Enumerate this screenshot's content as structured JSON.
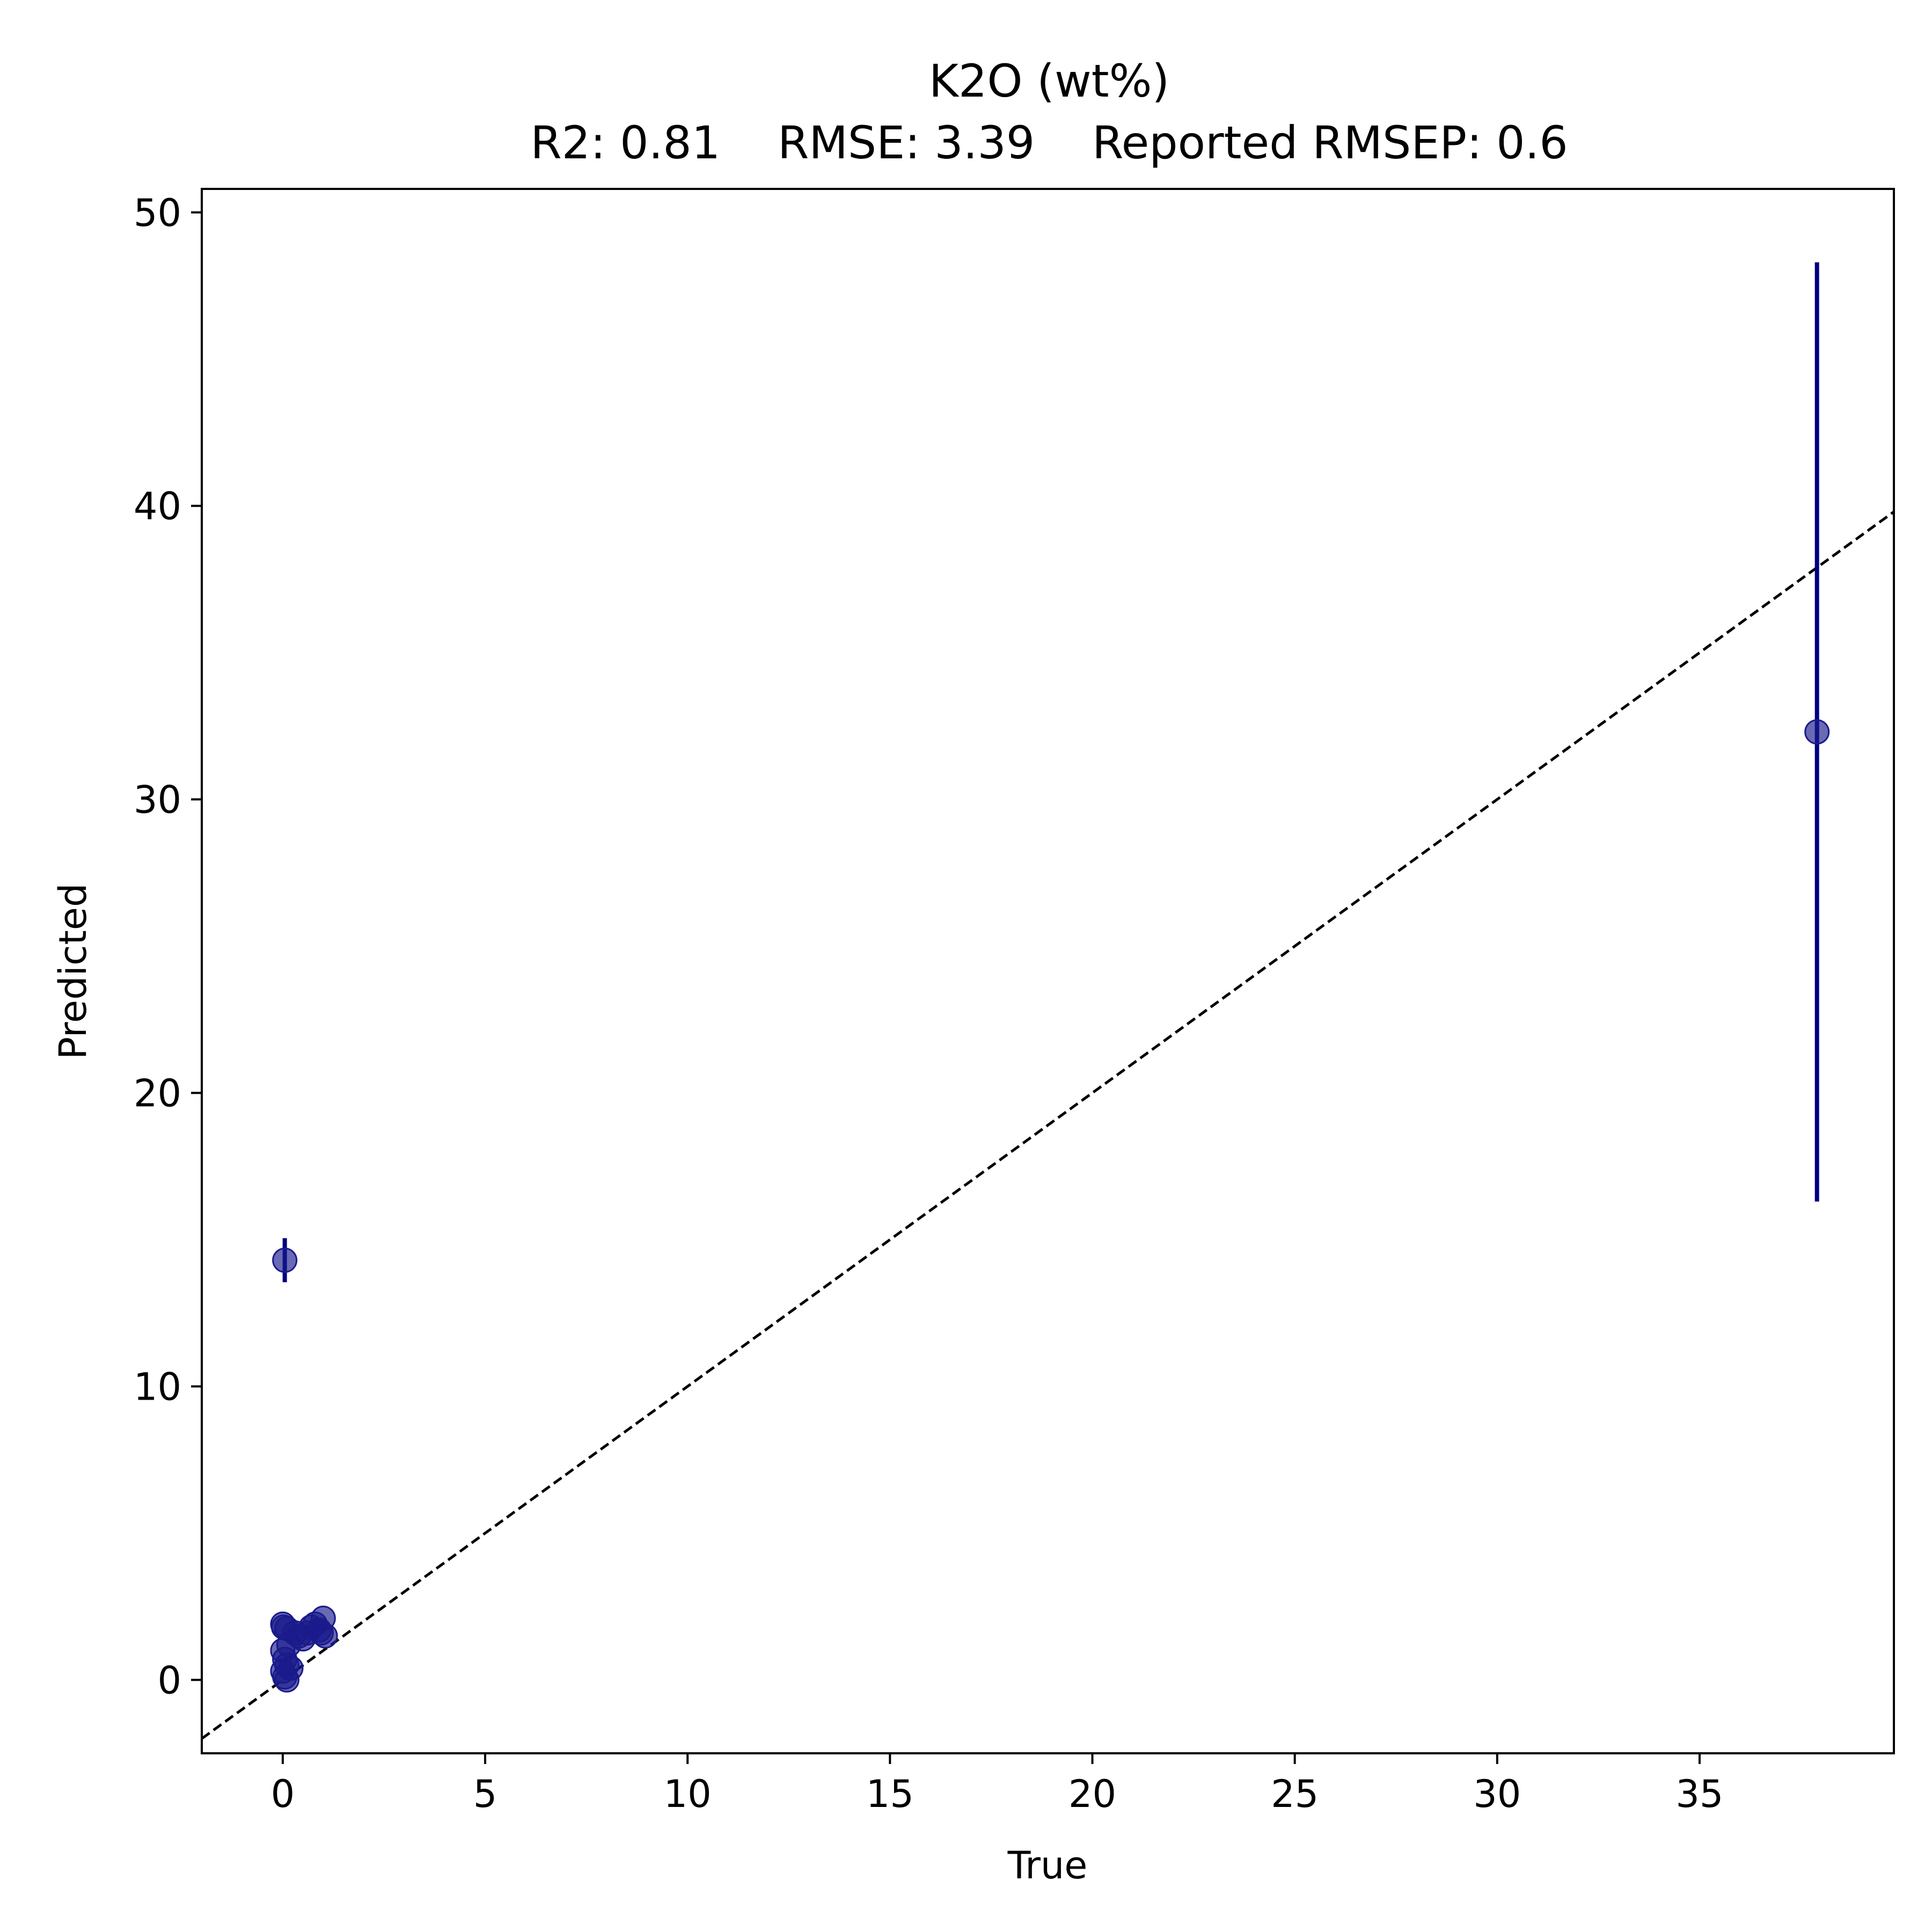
{
  "chart_data": {
    "type": "scatter",
    "title": "K2O (wt%)",
    "subtitle": "R2: 0.81    RMSE: 3.39    Reported RMSEP: 0.6",
    "xlabel": "True",
    "ylabel": "Predicted",
    "xlim": [
      -2,
      39.8
    ],
    "ylim": [
      -2.5,
      50.8
    ],
    "xticks": [
      0,
      5,
      10,
      15,
      20,
      25,
      30,
      35
    ],
    "yticks": [
      0,
      10,
      20,
      30,
      40,
      50
    ],
    "grid": false,
    "legend": "none",
    "colors": {
      "marker": "#1a1a8c",
      "errorbar": "#000080",
      "reference": "#000000"
    },
    "reference_line": {
      "label": "y = x",
      "style": "dashed"
    },
    "points": [
      {
        "x": 0.05,
        "y": 14.3,
        "err": 0.75
      },
      {
        "x": 37.9,
        "y": 32.3,
        "err": 16.0
      },
      {
        "x": 0.0,
        "y": 1.9,
        "err": 0
      },
      {
        "x": 0.02,
        "y": 1.8,
        "err": 0
      },
      {
        "x": 0.1,
        "y": 1.75,
        "err": 0
      },
      {
        "x": 0.0,
        "y": 1.0,
        "err": 0
      },
      {
        "x": 0.05,
        "y": 0.7,
        "err": 0
      },
      {
        "x": 0.1,
        "y": 0.5,
        "err": 0
      },
      {
        "x": 0.0,
        "y": 0.3,
        "err": 0
      },
      {
        "x": 0.05,
        "y": 0.1,
        "err": 0
      },
      {
        "x": 0.1,
        "y": 0.0,
        "err": 0
      },
      {
        "x": 0.2,
        "y": 0.4,
        "err": 0
      },
      {
        "x": 0.15,
        "y": 1.2,
        "err": 0
      },
      {
        "x": 0.3,
        "y": 1.6,
        "err": 0
      },
      {
        "x": 0.4,
        "y": 1.5,
        "err": 0
      },
      {
        "x": 0.5,
        "y": 1.4,
        "err": 0
      },
      {
        "x": 0.6,
        "y": 1.6,
        "err": 0
      },
      {
        "x": 0.7,
        "y": 1.8,
        "err": 0
      },
      {
        "x": 0.8,
        "y": 1.9,
        "err": 0
      },
      {
        "x": 0.9,
        "y": 1.7,
        "err": 0
      },
      {
        "x": 1.0,
        "y": 2.1,
        "err": 0
      },
      {
        "x": 1.05,
        "y": 1.5,
        "err": 0
      },
      {
        "x": 0.95,
        "y": 1.6,
        "err": 0
      }
    ]
  }
}
